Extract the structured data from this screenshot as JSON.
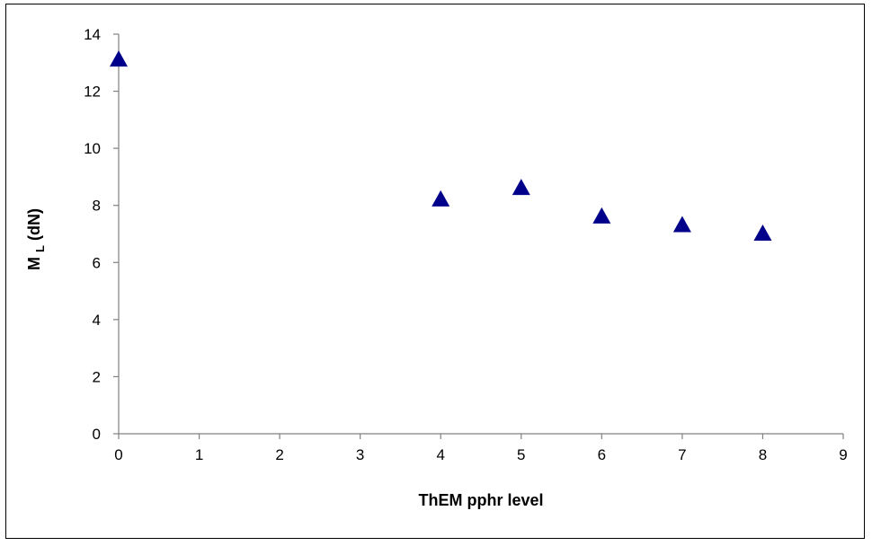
{
  "chart_data": {
    "type": "scatter",
    "xlabel": "ThEM pphr level",
    "ylabel": {
      "main": "M",
      "subscript": "L",
      "suffix": " (dN)"
    },
    "xlim": [
      0,
      9
    ],
    "ylim": [
      0,
      14
    ],
    "xticks": [
      0,
      1,
      2,
      3,
      4,
      5,
      6,
      7,
      8,
      9
    ],
    "yticks": [
      0,
      2,
      4,
      6,
      8,
      10,
      12,
      14
    ],
    "grid": false,
    "legend": "none",
    "marker": "triangle",
    "marker_color": "#00008B",
    "series": [
      {
        "x": [
          0,
          4,
          5,
          6,
          7,
          8
        ],
        "y": [
          13.1,
          8.2,
          8.6,
          7.6,
          7.3,
          7.0
        ]
      }
    ]
  }
}
